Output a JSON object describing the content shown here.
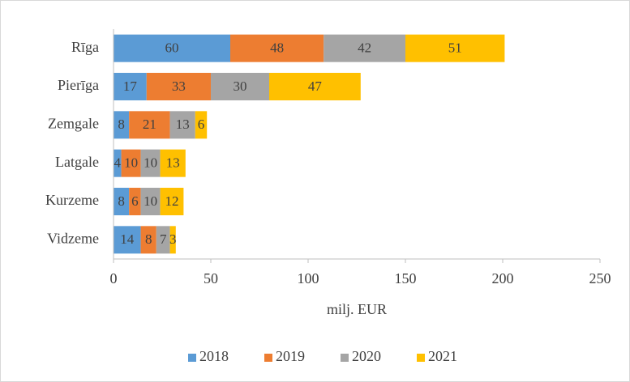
{
  "chart_data": {
    "type": "stacked_barh",
    "categories": [
      "Rīga",
      "Pierīga",
      "Zemgale",
      "Latgale",
      "Kurzeme",
      "Vidzeme"
    ],
    "series": [
      {
        "name": "2018",
        "color": "#5b9bd5",
        "values": [
          60,
          17,
          8,
          4,
          8,
          14
        ]
      },
      {
        "name": "2019",
        "color": "#ed7d31",
        "values": [
          48,
          33,
          21,
          10,
          6,
          8
        ]
      },
      {
        "name": "2020",
        "color": "#a5a5a5",
        "values": [
          42,
          30,
          13,
          10,
          10,
          7
        ]
      },
      {
        "name": "2021",
        "color": "#ffc000",
        "values": [
          51,
          47,
          6,
          13,
          12,
          3
        ]
      }
    ],
    "xlabel": "milj. EUR",
    "xlim": [
      0,
      250
    ],
    "xticks": [
      0,
      50,
      100,
      150,
      200,
      250
    ],
    "grid": false,
    "legend": "bottom"
  }
}
